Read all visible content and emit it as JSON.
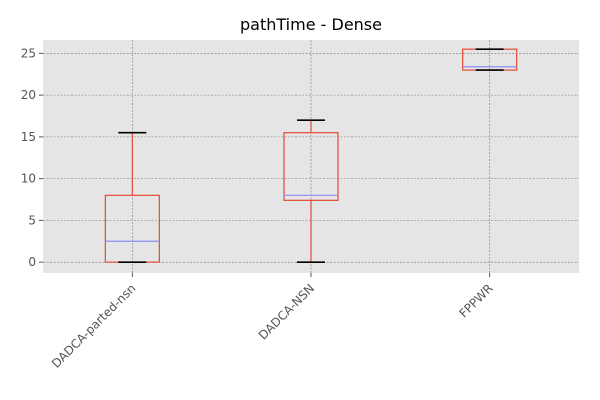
{
  "chart_data": {
    "type": "box",
    "title": "pathTime - Dense",
    "xlabel": "",
    "ylabel": "",
    "ylim": [
      -1.3,
      26.6
    ],
    "yticks": [
      0,
      5,
      10,
      15,
      20,
      25
    ],
    "ytick_labels": [
      "0",
      "5",
      "10",
      "15",
      "20",
      "25"
    ],
    "grid": true,
    "categories": [
      "DADCA-parted-nsn",
      "DADCA-NSN",
      "FPPWR"
    ],
    "boxes": [
      {
        "category": "DADCA-parted-nsn",
        "whisker_low": 0,
        "q1": 0,
        "median": 2.5,
        "q3": 8.0,
        "whisker_high": 15.5
      },
      {
        "category": "DADCA-NSN",
        "whisker_low": 0,
        "q1": 7.4,
        "median": 8.0,
        "q3": 15.5,
        "whisker_high": 17.0
      },
      {
        "category": "FPPWR",
        "whisker_low": 23.0,
        "q1": 23.0,
        "median": 23.4,
        "q3": 25.5,
        "whisker_high": 25.5
      }
    ],
    "colors": {
      "background": "#e5e5e5",
      "grid": "#777777",
      "box": "#e24a33",
      "median": "#8d8df2",
      "cap": "#000000"
    }
  }
}
